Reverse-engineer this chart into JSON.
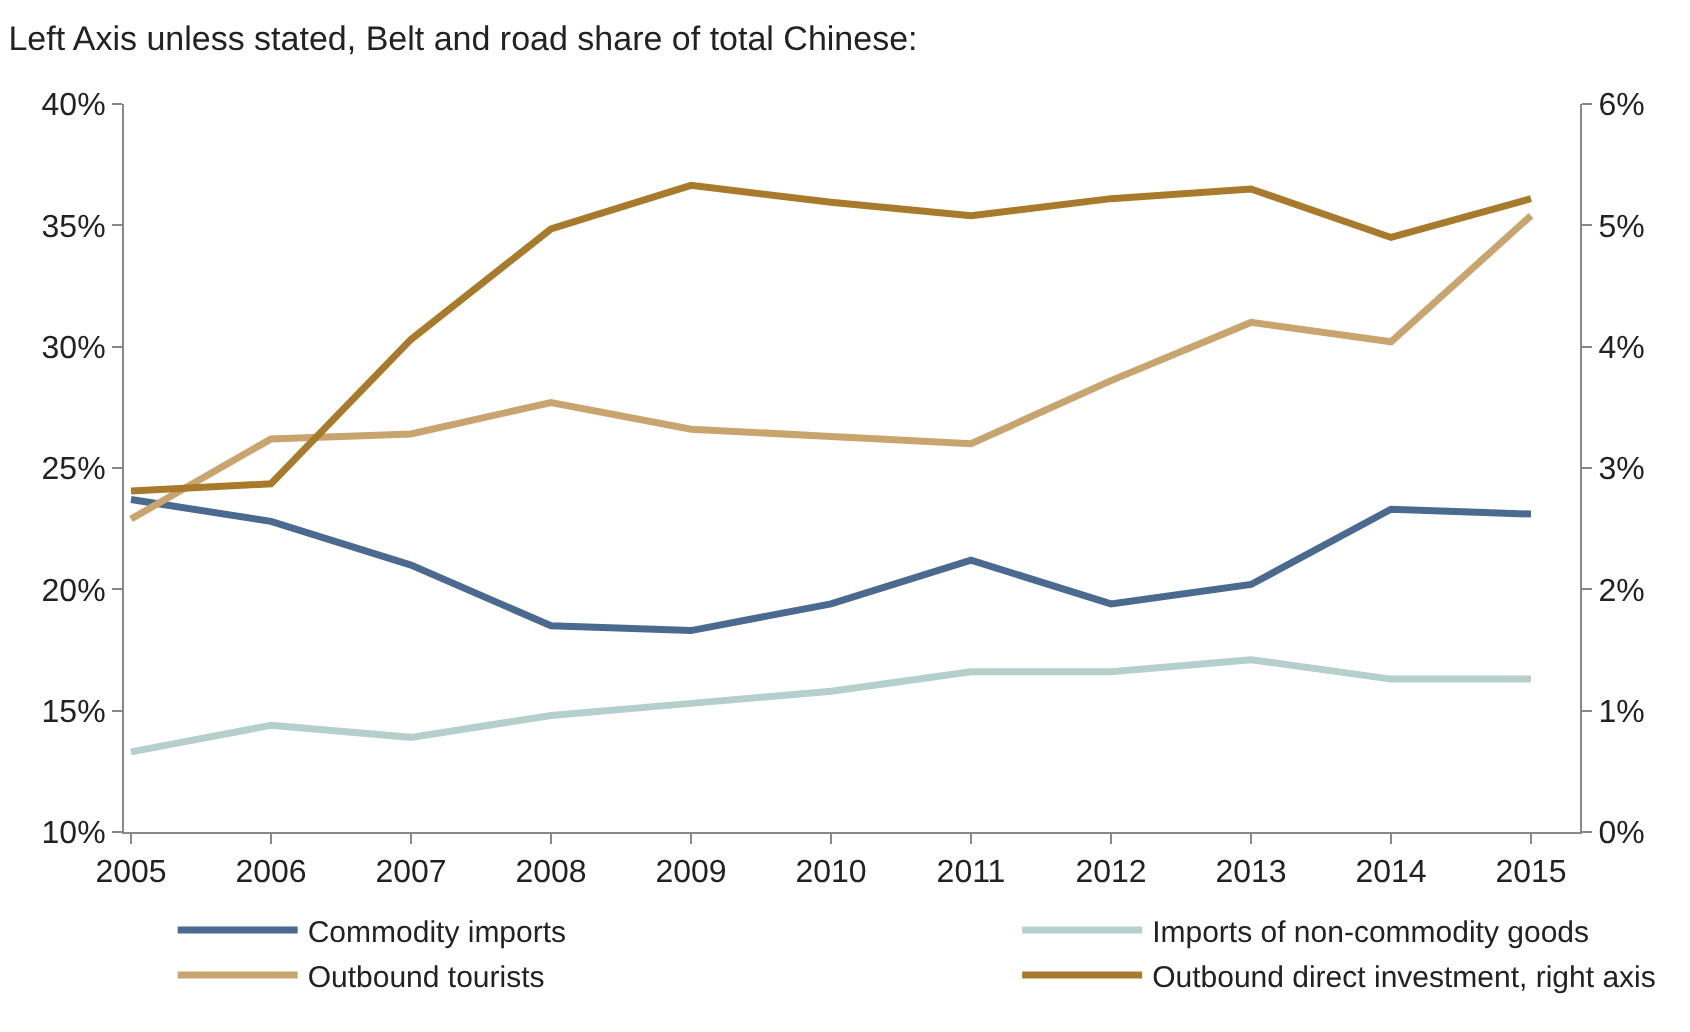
{
  "chart_data": {
    "type": "line",
    "title": "Left Axis unless stated, Belt and road share of total Chinese:",
    "x": [
      2005,
      2006,
      2007,
      2008,
      2009,
      2010,
      2011,
      2012,
      2013,
      2014,
      2015
    ],
    "xlim": [
      2004.95,
      2015.35
    ],
    "xticks": [
      2005,
      2006,
      2007,
      2008,
      2009,
      2010,
      2011,
      2012,
      2013,
      2014,
      2015
    ],
    "ylim": [
      10,
      40
    ],
    "yticks": [
      {
        "value": 10,
        "label": "10%"
      },
      {
        "value": 15,
        "label": "15%"
      },
      {
        "value": 20,
        "label": "20%"
      },
      {
        "value": 25,
        "label": "25%"
      },
      {
        "value": 30,
        "label": "30%"
      },
      {
        "value": 35,
        "label": "35%"
      },
      {
        "value": 40,
        "label": "40%"
      }
    ],
    "y2lim": [
      0,
      6
    ],
    "y2ticks": [
      {
        "value": 0,
        "label": "0%"
      },
      {
        "value": 1,
        "label": "1%"
      },
      {
        "value": 2,
        "label": "2%"
      },
      {
        "value": 3,
        "label": "3%"
      },
      {
        "value": 4,
        "label": "4%"
      },
      {
        "value": 5,
        "label": "5%"
      },
      {
        "value": 6,
        "label": "6%"
      }
    ],
    "series": [
      {
        "name": "Commodity imports",
        "color": "#4a6a8f",
        "values": [
          23.7,
          22.8,
          21.0,
          18.5,
          18.3,
          19.4,
          21.2,
          19.4,
          20.2,
          23.3,
          23.1
        ]
      },
      {
        "name": "Imports of non-commodity goods",
        "color": "#b5d0cc",
        "values": [
          13.3,
          14.4,
          13.9,
          14.8,
          15.3,
          15.8,
          16.6,
          16.6,
          17.1,
          16.3,
          16.3
        ]
      },
      {
        "name": "Outbound tourists",
        "color": "#c8a56e",
        "values": [
          22.9,
          26.2,
          26.4,
          27.7,
          26.6,
          26.3,
          26.0,
          28.6,
          31.0,
          30.2,
          35.4
        ]
      },
      {
        "name": "Outbound direct investment, right axis",
        "color": "#a87a2c",
        "axis": "y2",
        "values": [
          2.81,
          2.87,
          4.06,
          4.97,
          5.33,
          5.19,
          5.08,
          5.22,
          5.3,
          4.9,
          5.22
        ]
      }
    ],
    "legend": "bottom",
    "marker": "none",
    "line_style": "solid"
  }
}
